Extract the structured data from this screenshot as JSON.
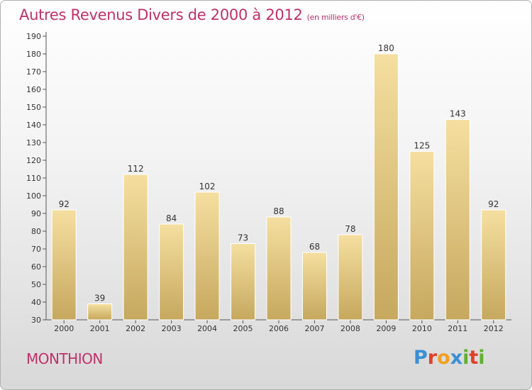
{
  "header": {
    "title": "Autres Revenus Divers de 2000 à 2012",
    "subtitle": "(en milliers d'€)"
  },
  "footer": {
    "commune": "MONTHION",
    "brand_letters": [
      {
        "ch": "P",
        "color": "#3a8fd4"
      },
      {
        "ch": "r",
        "color": "#e0402a"
      },
      {
        "ch": "o",
        "color": "#f0a020"
      },
      {
        "ch": "x",
        "color": "#3a8fd4"
      },
      {
        "ch": "i",
        "color": "#60b030"
      },
      {
        "ch": "t",
        "color": "#e0402a"
      },
      {
        "ch": "i",
        "color": "#60b030"
      }
    ]
  },
  "colors": {
    "accent": "#c0306a",
    "bar_light": "#f5dfa0",
    "bar_dark": "#c6a85e"
  },
  "chart_data": {
    "type": "bar",
    "title": "Autres Revenus Divers de 2000 à 2012",
    "subtitle": "(en milliers d'€)",
    "xlabel": "",
    "ylabel": "",
    "categories": [
      "2000",
      "2001",
      "2002",
      "2003",
      "2004",
      "2005",
      "2006",
      "2007",
      "2008",
      "2009",
      "2010",
      "2011",
      "2012"
    ],
    "values": [
      92,
      39,
      112,
      84,
      102,
      73,
      88,
      68,
      78,
      180,
      125,
      143,
      92
    ],
    "ylim": [
      30,
      190
    ],
    "yticks": [
      30,
      40,
      50,
      60,
      70,
      80,
      90,
      100,
      110,
      120,
      130,
      140,
      150,
      160,
      170,
      180,
      190
    ],
    "grid": false,
    "legend": "none"
  }
}
